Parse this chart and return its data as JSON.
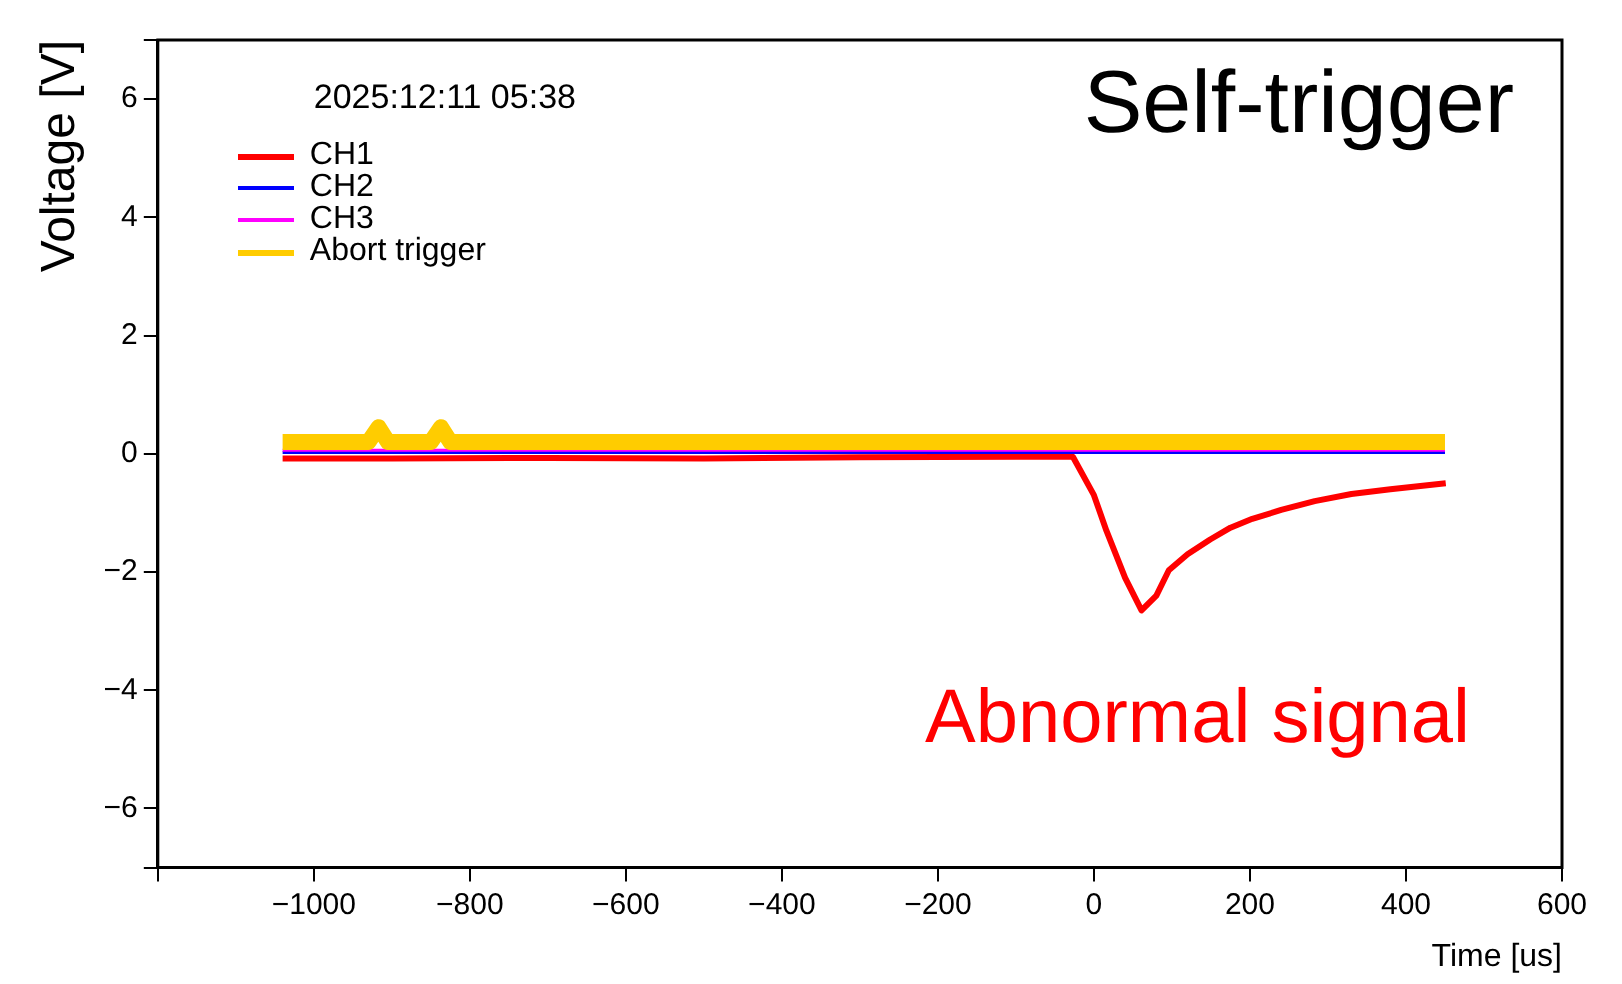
{
  "chart_data": {
    "type": "line",
    "xlabel": "Time [us]",
    "ylabel": "Voltage [V]",
    "annotations": [
      "2025:12:11 05:38",
      "Self-trigger",
      "Abnormal signal"
    ],
    "xlim": [
      -1200,
      600
    ],
    "xticks": [
      {
        "value": -1200,
        "label": null
      },
      -1000,
      -800,
      -600,
      -400,
      -200,
      0,
      200,
      400,
      600
    ],
    "ylim": [
      -7,
      7
    ],
    "yticks": [
      {
        "value": -7,
        "label": null
      },
      -6,
      -4,
      -2,
      0,
      2,
      4,
      6,
      {
        "value": 7,
        "label": null
      }
    ],
    "grid": false,
    "legend": "top left",
    "marker": "none",
    "line_style": "solid",
    "series": [
      {
        "name": "CH1",
        "color": "#ff0000",
        "x": [
          -1040,
          -900,
          -700,
          -500,
          -300,
          -100,
          -27,
          0,
          16,
          40,
          61,
          80,
          96,
          120,
          149,
          175,
          203,
          240,
          283,
          330,
          380,
          451
        ],
        "values": [
          -0.08,
          -0.08,
          -0.07,
          -0.08,
          -0.06,
          -0.05,
          -0.05,
          -0.7,
          -1.3,
          -2.1,
          -2.65,
          -2.4,
          -1.97,
          -1.7,
          -1.45,
          -1.25,
          -1.1,
          -0.95,
          -0.8,
          -0.68,
          -0.6,
          -0.5
        ]
      },
      {
        "name": "CH2",
        "color": "#0000ff",
        "x": [
          -1040,
          450
        ],
        "values": [
          0.02,
          0.02
        ]
      },
      {
        "name": "CH3",
        "color": "#ff00ff",
        "x": [
          -1040,
          450
        ],
        "values": [
          0.06,
          0.06
        ]
      },
      {
        "name": "Abort trigger",
        "color": "#ffcc00",
        "x": [
          -1040,
          -930,
          -917,
          -905,
          -850,
          -837,
          -825,
          -700,
          -500,
          -300,
          -100,
          100,
          300,
          450
        ],
        "values": [
          0.2,
          0.2,
          0.45,
          0.2,
          0.2,
          0.45,
          0.2,
          0.2,
          0.2,
          0.2,
          0.2,
          0.2,
          0.2,
          0.2
        ]
      }
    ]
  }
}
